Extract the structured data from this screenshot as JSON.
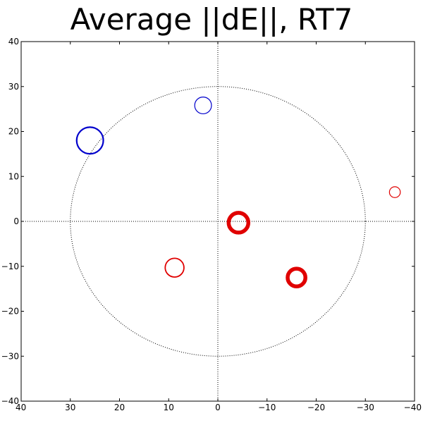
{
  "chart_data": {
    "type": "scatter",
    "title": "Average ||dE||, RT7",
    "xlabel": "",
    "ylabel": "",
    "xlim": [
      40,
      -40
    ],
    "ylim": [
      -40,
      40
    ],
    "x_ticks": [
      40,
      30,
      20,
      10,
      0,
      -10,
      -20,
      -30,
      -40
    ],
    "x_tick_labels": [
      "40",
      "30",
      "20",
      "10",
      "0",
      "−10",
      "−20",
      "−30",
      "−40"
    ],
    "y_ticks": [
      40,
      30,
      20,
      10,
      0,
      -10,
      -20,
      -30,
      -40
    ],
    "y_tick_labels": [
      "40",
      "30",
      "20",
      "10",
      "0",
      "−10",
      "−20",
      "−30",
      "−40"
    ],
    "grid": false,
    "reference_circle_radius": 30,
    "reference_axes": true,
    "points": [
      {
        "x": 26,
        "y": 18,
        "magnitude": 2.7,
        "weight": 2.2,
        "color": "#0000cc"
      },
      {
        "x": 3,
        "y": 25.8,
        "magnitude": 1.7,
        "weight": 1.2,
        "color": "#0000cc"
      },
      {
        "x": -36,
        "y": 6.5,
        "magnitude": 1.1,
        "weight": 1.2,
        "color": "#e00000"
      },
      {
        "x": -4.2,
        "y": -0.3,
        "magnitude": 2.0,
        "weight": 5.5,
        "color": "#e00000"
      },
      {
        "x": 8.8,
        "y": -10.3,
        "magnitude": 1.9,
        "weight": 1.8,
        "color": "#e00000"
      },
      {
        "x": -16,
        "y": -12.5,
        "magnitude": 1.8,
        "weight": 5.5,
        "color": "#e00000"
      }
    ]
  }
}
